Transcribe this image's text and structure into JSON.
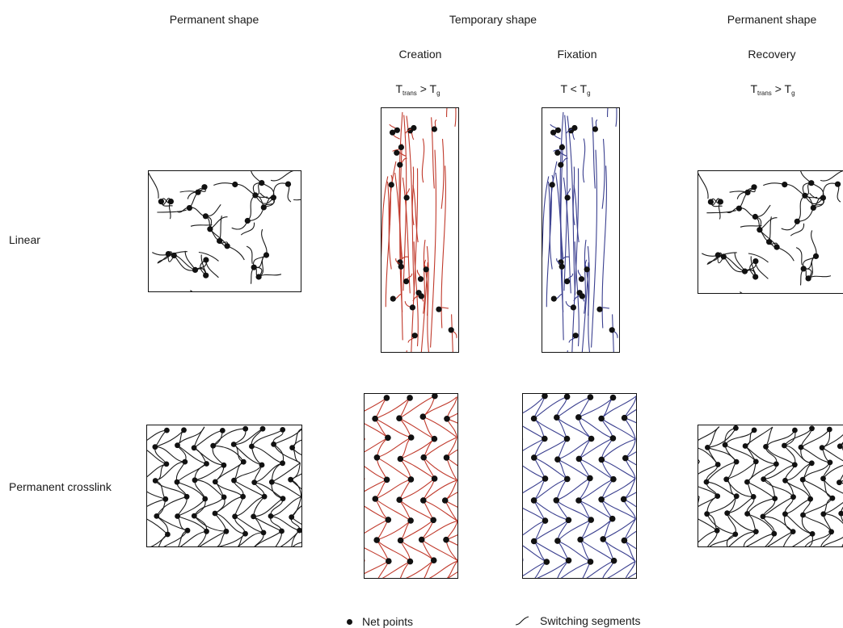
{
  "headers": {
    "permanent_left": "Permanent shape",
    "temporary": "Temporary shape",
    "permanent_right": "Permanent shape"
  },
  "steps": {
    "creation": "Creation",
    "fixation": "Fixation",
    "recovery": "Recovery"
  },
  "conditions": {
    "creation": {
      "t": "T",
      "sub": "trans",
      "op": " > ",
      "t2": "T",
      "sub2": "g"
    },
    "fixation": {
      "t": "T",
      "op": " < ",
      "t2": "T",
      "sub2": "g"
    },
    "recovery": {
      "t": "T",
      "sub": "trans",
      "op": " > ",
      "t2": "T",
      "sub2": "g"
    }
  },
  "rows": {
    "linear": "Linear",
    "crosslink": "Permanent crosslink"
  },
  "legend": {
    "net_points": "Net points",
    "switching_segments": "Switching segments"
  },
  "colors": {
    "permanent": "#1a1a1a",
    "creation": "#c0392b",
    "fixation": "#3a3f8f"
  }
}
